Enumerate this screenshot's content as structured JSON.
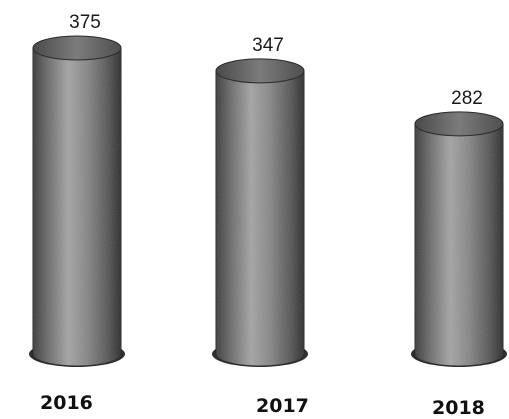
{
  "chart_data": {
    "type": "bar",
    "style": "3d-cylinder",
    "categories": [
      "2016",
      "2017",
      "2018"
    ],
    "values": [
      375,
      347,
      282
    ],
    "value_labels": [
      "375",
      "347",
      "282"
    ],
    "ylim": [
      0,
      375
    ],
    "grid": false,
    "legend": "none",
    "colors": {
      "bar_body": "#7a7a7a",
      "bar_highlight": "#a8a8a8",
      "bar_shadow": "#2e2e2e",
      "bar_top": "#6a6a6a"
    }
  }
}
